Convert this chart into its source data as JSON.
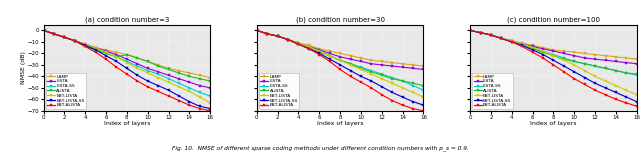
{
  "x": [
    0,
    1,
    2,
    3,
    4,
    5,
    6,
    7,
    8,
    9,
    10,
    11,
    12,
    13,
    14,
    15,
    16
  ],
  "subplot_titles": [
    "(a) condition number=3",
    "(b) condition number=30",
    "(c) condition number=100"
  ],
  "xlabel": "Index of layers",
  "ylabel": "NMSE (dB)",
  "ylim": [
    -70,
    5
  ],
  "yticks": [
    0,
    -10,
    -20,
    -30,
    -40,
    -50,
    -60,
    -70
  ],
  "xlim": [
    0,
    16
  ],
  "xticks": [
    0,
    2,
    4,
    6,
    8,
    10,
    12,
    14,
    16
  ],
  "legend_labels": [
    "LAMP",
    "LISTA",
    "LISTA-SS",
    "ALISTA",
    "EBT-LISTA",
    "EBT-LISTA-SS",
    "EBT-ALISTA"
  ],
  "colors": [
    "#DAA520",
    "#9400D3",
    "#00CED1",
    "#22BB22",
    "#CCCC00",
    "#0000CD",
    "#FF0000"
  ],
  "markers": [
    "s",
    "s",
    "s",
    "s",
    "s",
    "s",
    "s"
  ],
  "markersize": 2.0,
  "linewidth": 0.8,
  "data": {
    "cond3": {
      "LAMP": [
        0,
        -3,
        -6,
        -9,
        -12,
        -15,
        -17,
        -19,
        -21,
        -24,
        -27,
        -30,
        -33,
        -35,
        -37,
        -39,
        -41
      ],
      "LISTA": [
        0,
        -3,
        -6,
        -9,
        -12,
        -15,
        -18,
        -21,
        -25,
        -29,
        -33,
        -36,
        -39,
        -42,
        -45,
        -48,
        -50
      ],
      "LISTA-SS": [
        0,
        -3,
        -6,
        -9,
        -13,
        -16,
        -19,
        -23,
        -27,
        -31,
        -35,
        -38,
        -42,
        -46,
        -50,
        -54,
        -57
      ],
      "ALISTA": [
        0,
        -3,
        -6,
        -9,
        -14,
        -17,
        -20,
        -23,
        -21,
        -24,
        -27,
        -31,
        -34,
        -37,
        -40,
        -42,
        -44
      ],
      "EBT-LISTA": [
        0,
        -3,
        -6,
        -9,
        -12,
        -15,
        -19,
        -23,
        -28,
        -33,
        -37,
        -41,
        -45,
        -49,
        -53,
        -58,
        -63
      ],
      "EBT-LISTA-SS": [
        0,
        -3,
        -6,
        -9,
        -13,
        -17,
        -22,
        -27,
        -33,
        -39,
        -44,
        -48,
        -52,
        -57,
        -62,
        -66,
        -68
      ],
      "EBT-ALISTA": [
        0,
        -3,
        -6,
        -9,
        -14,
        -19,
        -25,
        -32,
        -38,
        -44,
        -49,
        -53,
        -57,
        -61,
        -65,
        -68,
        -70
      ]
    },
    "cond30": {
      "LAMP": [
        0,
        -3,
        -5,
        -8,
        -11,
        -13,
        -16,
        -18,
        -20,
        -22,
        -24,
        -26,
        -27,
        -28,
        -29,
        -30,
        -31
      ],
      "LISTA": [
        0,
        -3,
        -5,
        -8,
        -11,
        -14,
        -17,
        -20,
        -23,
        -25,
        -27,
        -29,
        -30,
        -31,
        -32,
        -33,
        -34
      ],
      "LISTA-SS": [
        0,
        -3,
        -5,
        -8,
        -12,
        -15,
        -18,
        -22,
        -26,
        -29,
        -32,
        -35,
        -38,
        -41,
        -44,
        -48,
        -52
      ],
      "ALISTA": [
        0,
        -3,
        -5,
        -8,
        -12,
        -15,
        -19,
        -22,
        -26,
        -29,
        -33,
        -36,
        -39,
        -42,
        -44,
        -46,
        -48
      ],
      "EBT-LISTA": [
        0,
        -3,
        -5,
        -8,
        -11,
        -14,
        -18,
        -22,
        -26,
        -30,
        -34,
        -38,
        -42,
        -46,
        -50,
        -54,
        -58
      ],
      "EBT-LISTA-SS": [
        0,
        -3,
        -5,
        -8,
        -12,
        -16,
        -20,
        -25,
        -30,
        -35,
        -40,
        -44,
        -49,
        -54,
        -58,
        -62,
        -65
      ],
      "EBT-ALISTA": [
        0,
        -3,
        -5,
        -8,
        -12,
        -16,
        -21,
        -27,
        -34,
        -40,
        -45,
        -50,
        -56,
        -61,
        -65,
        -68,
        -70
      ]
    },
    "cond100": {
      "LAMP": [
        0,
        -2,
        -4,
        -7,
        -9,
        -11,
        -13,
        -15,
        -17,
        -18,
        -19,
        -20,
        -21,
        -22,
        -23,
        -24,
        -25
      ],
      "LISTA": [
        0,
        -2,
        -4,
        -7,
        -9,
        -12,
        -14,
        -16,
        -18,
        -20,
        -22,
        -24,
        -25,
        -26,
        -27,
        -28,
        -29
      ],
      "LISTA-SS": [
        0,
        -2,
        -4,
        -7,
        -9,
        -12,
        -15,
        -18,
        -21,
        -24,
        -27,
        -29,
        -31,
        -33,
        -35,
        -37,
        -39
      ],
      "ALISTA": [
        0,
        -2,
        -4,
        -7,
        -10,
        -13,
        -16,
        -19,
        -22,
        -25,
        -27,
        -29,
        -31,
        -33,
        -35,
        -37,
        -38
      ],
      "EBT-LISTA": [
        0,
        -2,
        -4,
        -7,
        -9,
        -12,
        -15,
        -18,
        -22,
        -26,
        -30,
        -35,
        -40,
        -44,
        -48,
        -52,
        -56
      ],
      "EBT-LISTA-SS": [
        0,
        -2,
        -4,
        -7,
        -10,
        -13,
        -17,
        -21,
        -26,
        -31,
        -36,
        -41,
        -46,
        -50,
        -54,
        -58,
        -62
      ],
      "EBT-ALISTA": [
        0,
        -2,
        -4,
        -7,
        -10,
        -14,
        -19,
        -24,
        -30,
        -36,
        -42,
        -47,
        -52,
        -56,
        -60,
        -63,
        -66
      ]
    }
  },
  "figure_caption": "Fig. 10.  NMSE of different sparse coding methods under different condition numbers with p_s = 0.9.",
  "background_color": "#e8e8e8"
}
